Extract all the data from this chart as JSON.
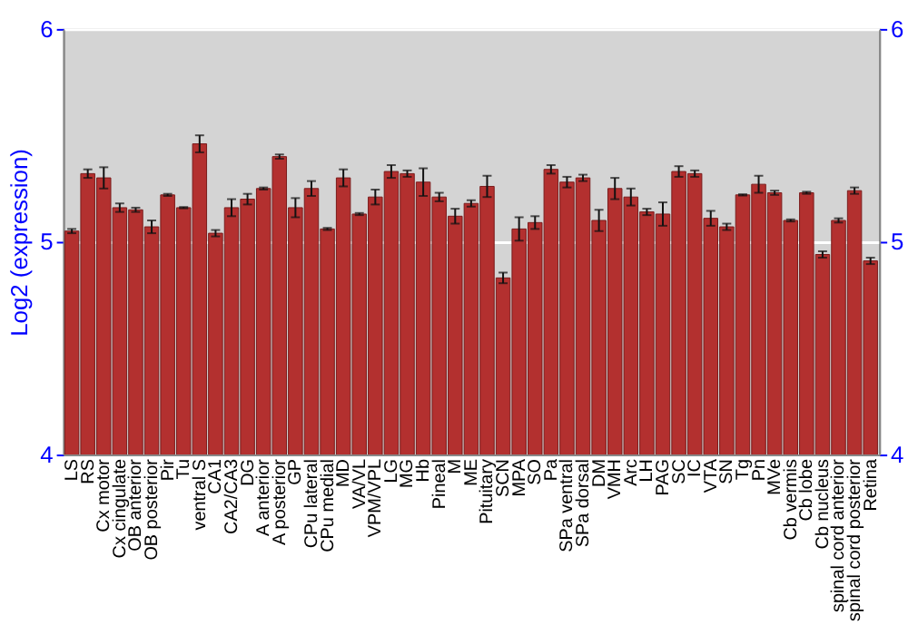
{
  "chart_data": {
    "type": "bar",
    "ylabel": "Log2 (expression)",
    "categories": [
      "LS",
      "RS",
      "Cx motor",
      "Cx cingulate",
      "OB anterior",
      "OB posterior",
      "Pir",
      "Tu",
      "ventral S",
      "CA1",
      "CA2/CA3",
      "DG",
      "A anterior",
      "A posterior",
      "GP",
      "CPu lateral",
      "CPu medial",
      "MD",
      "VA/VL",
      "VPM/VPL",
      "LG",
      "MG",
      "Hb",
      "Pineal",
      "M",
      "ME",
      "Pituitary",
      "SCN",
      "MPA",
      "SO",
      "Pa",
      "SPa ventral",
      "SPa dorsal",
      "DM",
      "VMH",
      "Arc",
      "LH",
      "PAG",
      "SC",
      "IC",
      "VTA",
      "SN",
      "Tg",
      "Pn",
      "MVe",
      "Cb vermis",
      "Cb lobe",
      "Cb nucleus",
      "spinal cord anterior",
      "spinal cord posterior",
      "Retina"
    ],
    "series": [
      {
        "color": "#b3302f",
        "values": [
          5.05,
          5.32,
          5.3,
          5.16,
          5.15,
          5.07,
          5.22,
          5.16,
          5.46,
          5.04,
          5.16,
          5.2,
          5.25,
          5.4,
          5.16,
          5.25,
          5.06,
          5.3,
          5.13,
          5.21,
          5.33,
          5.32,
          5.28,
          5.21,
          5.12,
          5.18,
          5.26,
          4.83,
          5.06,
          5.09,
          5.34,
          5.28,
          5.3,
          5.1,
          5.25,
          5.21,
          5.14,
          5.13,
          5.33,
          5.32,
          5.11,
          5.07,
          5.22,
          5.27,
          5.23,
          5.1,
          5.23,
          4.94,
          5.1,
          5.24,
          4.91
        ],
        "errors": [
          0.01,
          0.02,
          0.05,
          0.02,
          0.01,
          0.03,
          0.005,
          0.003,
          0.04,
          0.015,
          0.04,
          0.025,
          0.005,
          0.01,
          0.045,
          0.035,
          0.005,
          0.04,
          0.005,
          0.035,
          0.03,
          0.015,
          0.065,
          0.02,
          0.035,
          0.015,
          0.05,
          0.025,
          0.055,
          0.03,
          0.02,
          0.025,
          0.015,
          0.05,
          0.05,
          0.04,
          0.015,
          0.055,
          0.025,
          0.015,
          0.035,
          0.015,
          0.003,
          0.04,
          0.01,
          0.005,
          0.005,
          0.015,
          0.01,
          0.015,
          0.015
        ]
      }
    ],
    "ylim": [
      4,
      6
    ],
    "yticks": [
      4,
      5,
      6
    ],
    "y2lim": [
      4,
      6
    ],
    "y2ticks": [
      4,
      5,
      6
    ],
    "grid": "y"
  }
}
